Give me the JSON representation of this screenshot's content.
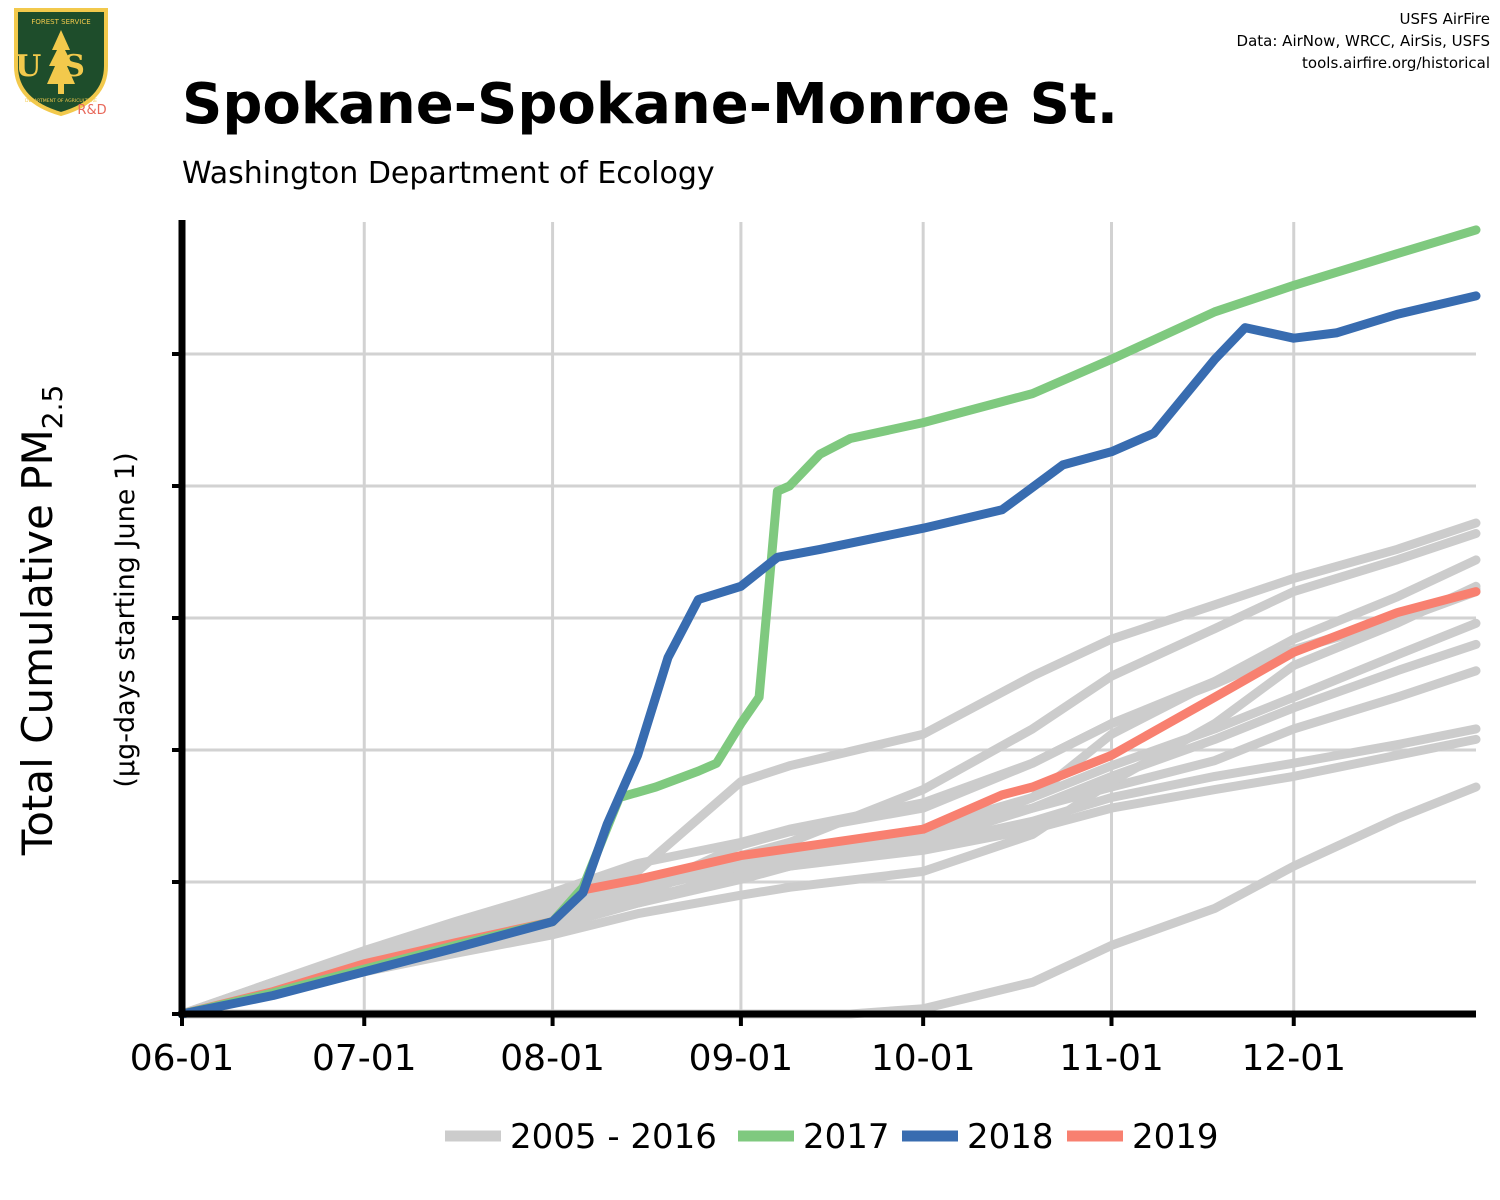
{
  "header": {
    "title": "Spokane-Spokane-Monroe St.",
    "subtitle": "Washington Department of Ecology",
    "credits": [
      "USFS AirFire",
      "Data: AirNow, WRCC, AirSis, USFS",
      "tools.airfire.org/historical"
    ]
  },
  "logo": {
    "text_top": "FOREST SERVICE",
    "text_main": "US",
    "text_bottom": "DEPARTMENT OF AGRICULTURE",
    "tag": "R&D",
    "colors": {
      "shield": "#1e4d2b",
      "border": "#f2c94c",
      "tag": "#e8685a"
    }
  },
  "chart_data": {
    "type": "line",
    "title": "Spokane-Spokane-Monroe St.",
    "ylabel": "Total Cumulative PM2.5",
    "ylabel_parts": {
      "main": "Total Cumulative PM",
      "subscript": "2.5"
    },
    "ysublabel": "(µg-days starting June 1)",
    "xlabel": "",
    "x_tick_labels": [
      "06-01",
      "07-01",
      "08-01",
      "09-01",
      "10-01",
      "11-01",
      "12-01"
    ],
    "x_tick_days": [
      0,
      30,
      61,
      92,
      122,
      153,
      183
    ],
    "xlim": [
      0,
      213
    ],
    "ylim": [
      0,
      3000
    ],
    "y_ticks": [
      0,
      500,
      1000,
      1500,
      2000,
      2500
    ],
    "y_tick_labels_shown": false,
    "grid": true,
    "legend_position": "bottom",
    "colors": {
      "2005 - 2016": "#cccccc",
      "2017": "#7fc97f",
      "2018": "#386cb0",
      "2019": "#f88070"
    },
    "series": [
      {
        "name": "2005 - 2016",
        "group": "historical",
        "x": [
          0,
          15,
          30,
          45,
          61,
          75,
          92,
          100,
          122,
          140,
          153,
          170,
          183,
          200,
          213
        ],
        "y": [
          0,
          100,
          180,
          250,
          330,
          420,
          520,
          560,
          620,
          700,
          780,
          850,
          900,
          980,
          1040
        ]
      },
      {
        "name": "2005 - 2016",
        "group": "historical",
        "x": [
          0,
          15,
          30,
          45,
          61,
          75,
          92,
          100,
          122,
          140,
          153,
          170,
          183,
          200,
          213
        ],
        "y": [
          0,
          110,
          200,
          280,
          360,
          430,
          530,
          570,
          640,
          730,
          820,
          900,
          950,
          1020,
          1080
        ]
      },
      {
        "name": "2005 - 2016",
        "group": "historical",
        "x": [
          0,
          15,
          30,
          45,
          61,
          75,
          92,
          100,
          122,
          140,
          153,
          170,
          183,
          200,
          213
        ],
        "y": [
          0,
          90,
          170,
          260,
          350,
          460,
          640,
          690,
          780,
          950,
          1100,
          1260,
          1380,
          1490,
          1600
        ]
      },
      {
        "name": "2005 - 2016",
        "group": "historical",
        "x": [
          0,
          15,
          30,
          45,
          61,
          75,
          92,
          100,
          122,
          140,
          153,
          170,
          183,
          200,
          213
        ],
        "y": [
          0,
          120,
          230,
          330,
          430,
          540,
          880,
          940,
          1060,
          1280,
          1420,
          1550,
          1650,
          1760,
          1860
        ]
      },
      {
        "name": "2005 - 2016",
        "group": "historical",
        "x": [
          0,
          15,
          30,
          45,
          61,
          75,
          92,
          100,
          122,
          140,
          153,
          170,
          183,
          200,
          213
        ],
        "y": [
          0,
          105,
          210,
          300,
          390,
          470,
          560,
          590,
          660,
          820,
          1060,
          1260,
          1420,
          1580,
          1720
        ]
      },
      {
        "name": "2005 - 2016",
        "group": "historical",
        "x": [
          0,
          15,
          30,
          45,
          61,
          75,
          92,
          100,
          122,
          140,
          153,
          170,
          183,
          200,
          213
        ],
        "y": [
          0,
          95,
          190,
          270,
          360,
          450,
          600,
          650,
          850,
          1080,
          1280,
          1460,
          1600,
          1720,
          1820
        ]
      },
      {
        "name": "2005 - 2016",
        "group": "historical",
        "x": [
          0,
          15,
          30,
          45,
          61,
          75,
          92,
          100,
          122,
          140,
          153,
          170,
          183,
          200,
          213
        ],
        "y": [
          0,
          115,
          220,
          310,
          400,
          500,
          580,
          620,
          700,
          820,
          940,
          1080,
          1200,
          1360,
          1480
        ]
      },
      {
        "name": "2005 - 2016",
        "group": "historical",
        "x": [
          0,
          15,
          30,
          45,
          61,
          75,
          92,
          100,
          122,
          140,
          153,
          170,
          183,
          200,
          213
        ],
        "y": [
          0,
          100,
          180,
          260,
          340,
          420,
          510,
          560,
          650,
          780,
          900,
          1040,
          1160,
          1300,
          1400
        ]
      },
      {
        "name": "2005 - 2016",
        "group": "historical",
        "x": [
          0,
          15,
          30,
          45,
          61,
          75,
          92,
          100,
          122,
          140,
          153,
          170,
          183,
          200,
          213
        ],
        "y": [
          0,
          110,
          200,
          290,
          380,
          480,
          580,
          620,
          690,
          780,
          860,
          960,
          1080,
          1200,
          1300
        ]
      },
      {
        "name": "2005 - 2016",
        "group": "historical",
        "x": [
          0,
          15,
          30,
          45,
          61,
          75,
          92,
          100,
          122,
          140,
          153,
          170,
          183,
          200,
          213
        ],
        "y": [
          0,
          90,
          160,
          230,
          300,
          380,
          450,
          480,
          540,
          680,
          880,
          1100,
          1320,
          1480,
          1620
        ]
      },
      {
        "name": "2005 - 2016",
        "group": "historical",
        "x": [
          0,
          15,
          30,
          45,
          61,
          75,
          92,
          100,
          122,
          140,
          153,
          170,
          183,
          200,
          213
        ],
        "y": [
          0,
          120,
          240,
          350,
          460,
          570,
          650,
          700,
          800,
          950,
          1100,
          1250,
          1380,
          1500,
          1610
        ]
      },
      {
        "name": "2005 - 2016",
        "group": "historical",
        "x": [
          0,
          15,
          30,
          45,
          61,
          75,
          92,
          100,
          110,
          122,
          140,
          153,
          170,
          183,
          200,
          213
        ],
        "y": [
          0,
          0,
          0,
          0,
          0,
          0,
          0,
          0,
          0,
          20,
          120,
          260,
          400,
          560,
          740,
          860
        ]
      },
      {
        "name": "2017",
        "group": "2017",
        "x": [
          0,
          15,
          30,
          45,
          61,
          66,
          72,
          78,
          85,
          88,
          92,
          95,
          98,
          100,
          105,
          110,
          122,
          140,
          153,
          170,
          183,
          200,
          213
        ],
        "y": [
          0,
          80,
          170,
          260,
          350,
          480,
          820,
          860,
          920,
          950,
          1100,
          1200,
          1980,
          2000,
          2120,
          2180,
          2240,
          2350,
          2480,
          2660,
          2760,
          2880,
          2970
        ]
      },
      {
        "name": "2018",
        "group": "2018",
        "x": [
          0,
          15,
          30,
          45,
          61,
          66,
          70,
          75,
          80,
          85,
          92,
          98,
          105,
          122,
          135,
          145,
          153,
          160,
          170,
          175,
          183,
          190,
          200,
          213
        ],
        "y": [
          0,
          70,
          160,
          250,
          350,
          460,
          720,
          980,
          1350,
          1570,
          1620,
          1730,
          1760,
          1840,
          1910,
          2080,
          2130,
          2200,
          2480,
          2600,
          2560,
          2580,
          2650,
          2720
        ]
      },
      {
        "name": "2019",
        "group": "2019",
        "x": [
          0,
          15,
          30,
          45,
          61,
          66,
          75,
          92,
          110,
          122,
          135,
          140,
          153,
          170,
          183,
          200,
          213
        ],
        "y": [
          0,
          85,
          190,
          270,
          350,
          470,
          510,
          600,
          660,
          700,
          830,
          860,
          980,
          1200,
          1370,
          1520,
          1600
        ]
      }
    ]
  }
}
